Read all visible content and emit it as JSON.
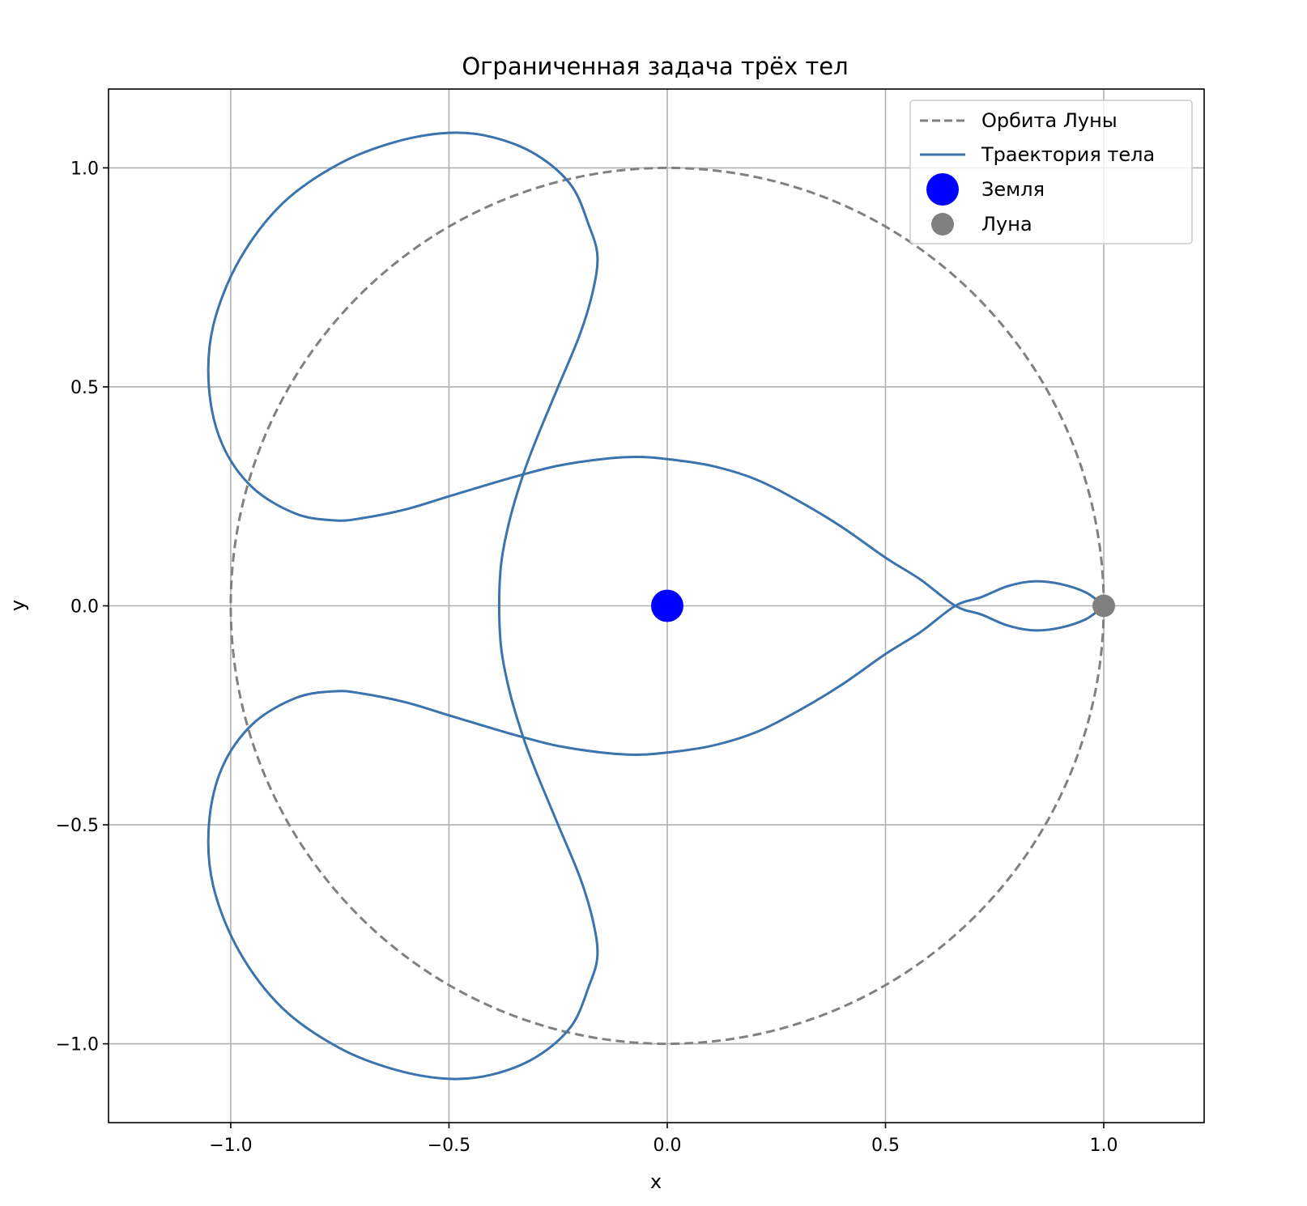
{
  "chart_data": {
    "type": "line",
    "title": "Ограниченная задача трёх тел",
    "xlabel": "x",
    "ylabel": "y",
    "xlim": [
      -1.28,
      1.23
    ],
    "ylim": [
      -1.18,
      1.18
    ],
    "xticks": [
      -1.0,
      -0.5,
      0.0,
      0.5,
      1.0
    ],
    "yticks": [
      -1.0,
      -0.5,
      0.0,
      0.5,
      1.0
    ],
    "xtick_labels": [
      "−1.0",
      "−0.5",
      "0.0",
      "0.5",
      "1.0"
    ],
    "ytick_labels": [
      "−1.0",
      "−0.5",
      "0.0",
      "0.5",
      "1.0"
    ],
    "grid": true,
    "legend_position": "top-right",
    "series": [
      {
        "name": "Орбита Луны",
        "kind": "circle",
        "center": [
          0,
          0
        ],
        "radius": 1.0,
        "color": "#808080",
        "style": "dashed"
      },
      {
        "name": "Траектория тела",
        "kind": "line",
        "color": "#3b73ad",
        "style": "solid",
        "points": [
          [
            1.0,
            0.0
          ],
          [
            0.96,
            0.03
          ],
          [
            0.9,
            0.05
          ],
          [
            0.84,
            0.056
          ],
          [
            0.78,
            0.045
          ],
          [
            0.72,
            0.02
          ],
          [
            0.66,
            0.0
          ],
          [
            0.58,
            -0.06
          ],
          [
            0.5,
            -0.11
          ],
          [
            0.4,
            -0.18
          ],
          [
            0.3,
            -0.24
          ],
          [
            0.2,
            -0.29
          ],
          [
            0.1,
            -0.32
          ],
          [
            0.0,
            -0.335
          ],
          [
            -0.07,
            -0.34
          ],
          [
            -0.15,
            -0.335
          ],
          [
            -0.25,
            -0.32
          ],
          [
            -0.33,
            -0.3
          ],
          [
            -0.4,
            -0.28
          ],
          [
            -0.5,
            -0.25
          ],
          [
            -0.6,
            -0.22
          ],
          [
            -0.7,
            -0.2
          ],
          [
            -0.76,
            -0.195
          ],
          [
            -0.85,
            -0.21
          ],
          [
            -0.95,
            -0.27
          ],
          [
            -1.02,
            -0.37
          ],
          [
            -1.05,
            -0.5
          ],
          [
            -1.04,
            -0.64
          ],
          [
            -0.98,
            -0.79
          ],
          [
            -0.88,
            -0.92
          ],
          [
            -0.75,
            -1.01
          ],
          [
            -0.62,
            -1.06
          ],
          [
            -0.5,
            -1.08
          ],
          [
            -0.4,
            -1.07
          ],
          [
            -0.3,
            -1.03
          ],
          [
            -0.22,
            -0.96
          ],
          [
            -0.18,
            -0.87
          ],
          [
            -0.16,
            -0.8
          ],
          [
            -0.17,
            -0.72
          ],
          [
            -0.2,
            -0.62
          ],
          [
            -0.25,
            -0.5
          ],
          [
            -0.3,
            -0.38
          ],
          [
            -0.33,
            -0.3
          ],
          [
            -0.36,
            -0.2
          ],
          [
            -0.38,
            -0.1
          ],
          [
            -0.385,
            0.0
          ],
          [
            -0.38,
            0.1
          ],
          [
            -0.36,
            0.2
          ],
          [
            -0.33,
            0.3
          ],
          [
            -0.3,
            0.38
          ],
          [
            -0.25,
            0.5
          ],
          [
            -0.2,
            0.62
          ],
          [
            -0.17,
            0.72
          ],
          [
            -0.16,
            0.8
          ],
          [
            -0.18,
            0.87
          ],
          [
            -0.22,
            0.96
          ],
          [
            -0.3,
            1.03
          ],
          [
            -0.4,
            1.07
          ],
          [
            -0.5,
            1.08
          ],
          [
            -0.62,
            1.06
          ],
          [
            -0.75,
            1.01
          ],
          [
            -0.88,
            0.92
          ],
          [
            -0.98,
            0.79
          ],
          [
            -1.04,
            0.64
          ],
          [
            -1.05,
            0.5
          ],
          [
            -1.02,
            0.37
          ],
          [
            -0.95,
            0.27
          ],
          [
            -0.85,
            0.21
          ],
          [
            -0.76,
            0.195
          ],
          [
            -0.7,
            0.2
          ],
          [
            -0.6,
            0.22
          ],
          [
            -0.5,
            0.25
          ],
          [
            -0.4,
            0.28
          ],
          [
            -0.33,
            0.3
          ],
          [
            -0.25,
            0.32
          ],
          [
            -0.15,
            0.335
          ],
          [
            -0.07,
            0.34
          ],
          [
            0.0,
            0.335
          ],
          [
            0.1,
            0.32
          ],
          [
            0.2,
            0.29
          ],
          [
            0.3,
            0.24
          ],
          [
            0.4,
            0.18
          ],
          [
            0.5,
            0.11
          ],
          [
            0.58,
            0.06
          ],
          [
            0.66,
            0.0
          ],
          [
            0.72,
            -0.02
          ],
          [
            0.78,
            -0.045
          ],
          [
            0.84,
            -0.056
          ],
          [
            0.9,
            -0.05
          ],
          [
            0.96,
            -0.03
          ],
          [
            1.0,
            0.0
          ]
        ]
      },
      {
        "name": "Земля",
        "kind": "point",
        "x": 0.0,
        "y": 0.0,
        "color": "#0000ff",
        "marker_size": "large"
      },
      {
        "name": "Луна",
        "kind": "point",
        "x": 1.0,
        "y": 0.0,
        "color": "#808080",
        "marker_size": "medium"
      }
    ]
  }
}
